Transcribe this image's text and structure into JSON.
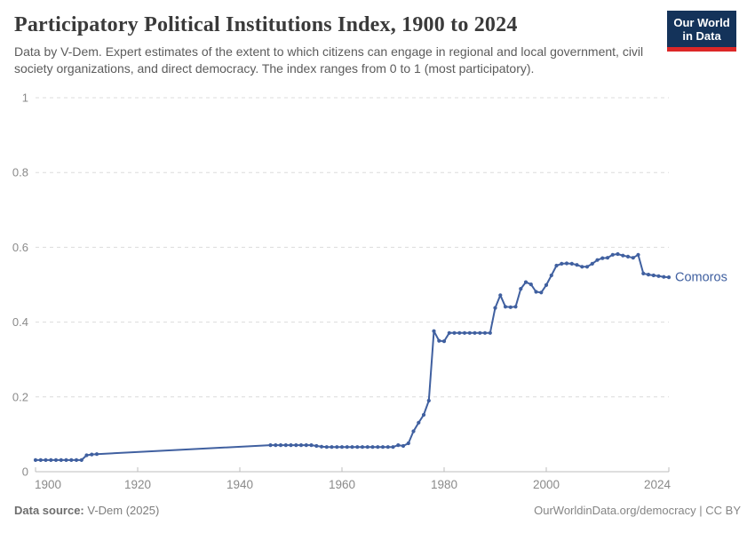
{
  "header": {
    "title": "Participatory Political Institutions Index, 1900 to 2024",
    "subtitle": "Data by V-Dem. Expert estimates of the extent to which citizens can engage in regional and local government, civil society organizations, and direct democracy. The index ranges from 0 to 1 (most participatory).",
    "logo": {
      "line1": "Our World",
      "line2": "in Data",
      "bg_color": "#14335a",
      "bar_color": "#dc2727"
    }
  },
  "footer": {
    "source_label": "Data source:",
    "source_value": " V-Dem (2025)",
    "credit": "OurWorldinData.org/democracy | CC BY"
  },
  "colors": {
    "series_blue": "#4060a0",
    "grid": "#dcdcdc",
    "axis_line": "#bcbcbc",
    "tick_label": "#8a8a8a",
    "title_text": "#3a3a3a",
    "subtitle_text": "#5b5b5b"
  },
  "chart_data": {
    "type": "line",
    "title": "Participatory Political Institutions Index, 1900 to 2024",
    "xlabel": "",
    "ylabel": "",
    "xlim": [
      1900,
      2024
    ],
    "ylim": [
      0,
      1
    ],
    "x_ticks": [
      1900,
      1920,
      1940,
      1960,
      1980,
      2000,
      2024
    ],
    "x_tick_labels": [
      "1900",
      "1920",
      "1940",
      "1960",
      "1980",
      "2000",
      "2024"
    ],
    "y_ticks": [
      0,
      0.2,
      0.4,
      0.6,
      0.8,
      1
    ],
    "y_tick_labels": [
      "0",
      "0.2",
      "0.4",
      "0.6",
      "0.8",
      "1"
    ],
    "grid": "dashed-horizontal",
    "legend_position": "end-of-line-label",
    "series": [
      {
        "name": "Comoros",
        "color": "#4060a0",
        "markers": true,
        "note": "no yearly estimates 1913-1945; straight interpolated segment without markers",
        "points": [
          [
            1900,
            0.031
          ],
          [
            1901,
            0.031
          ],
          [
            1902,
            0.031
          ],
          [
            1903,
            0.031
          ],
          [
            1904,
            0.031
          ],
          [
            1905,
            0.031
          ],
          [
            1906,
            0.031
          ],
          [
            1907,
            0.031
          ],
          [
            1908,
            0.031
          ],
          [
            1909,
            0.031
          ],
          [
            1910,
            0.044
          ],
          [
            1911,
            0.046
          ],
          [
            1912,
            0.047
          ],
          [
            1946,
            0.071
          ],
          [
            1947,
            0.071
          ],
          [
            1948,
            0.071
          ],
          [
            1949,
            0.071
          ],
          [
            1950,
            0.071
          ],
          [
            1951,
            0.071
          ],
          [
            1952,
            0.071
          ],
          [
            1953,
            0.071
          ],
          [
            1954,
            0.071
          ],
          [
            1955,
            0.069
          ],
          [
            1956,
            0.067
          ],
          [
            1957,
            0.066
          ],
          [
            1958,
            0.066
          ],
          [
            1959,
            0.066
          ],
          [
            1960,
            0.066
          ],
          [
            1961,
            0.066
          ],
          [
            1962,
            0.066
          ],
          [
            1963,
            0.066
          ],
          [
            1964,
            0.066
          ],
          [
            1965,
            0.066
          ],
          [
            1966,
            0.066
          ],
          [
            1967,
            0.066
          ],
          [
            1968,
            0.066
          ],
          [
            1969,
            0.066
          ],
          [
            1970,
            0.066
          ],
          [
            1971,
            0.071
          ],
          [
            1972,
            0.069
          ],
          [
            1973,
            0.076
          ],
          [
            1974,
            0.108
          ],
          [
            1975,
            0.131
          ],
          [
            1976,
            0.152
          ],
          [
            1977,
            0.19
          ],
          [
            1978,
            0.376
          ],
          [
            1979,
            0.35
          ],
          [
            1980,
            0.349
          ],
          [
            1981,
            0.371
          ],
          [
            1982,
            0.371
          ],
          [
            1983,
            0.371
          ],
          [
            1984,
            0.371
          ],
          [
            1985,
            0.371
          ],
          [
            1986,
            0.371
          ],
          [
            1987,
            0.371
          ],
          [
            1988,
            0.371
          ],
          [
            1989,
            0.371
          ],
          [
            1990,
            0.438
          ],
          [
            1991,
            0.472
          ],
          [
            1992,
            0.441
          ],
          [
            1993,
            0.44
          ],
          [
            1994,
            0.441
          ],
          [
            1995,
            0.489
          ],
          [
            1996,
            0.507
          ],
          [
            1997,
            0.501
          ],
          [
            1998,
            0.481
          ],
          [
            1999,
            0.479
          ],
          [
            2000,
            0.499
          ],
          [
            2001,
            0.525
          ],
          [
            2002,
            0.551
          ],
          [
            2003,
            0.556
          ],
          [
            2004,
            0.557
          ],
          [
            2005,
            0.556
          ],
          [
            2006,
            0.553
          ],
          [
            2007,
            0.548
          ],
          [
            2008,
            0.548
          ],
          [
            2009,
            0.556
          ],
          [
            2010,
            0.566
          ],
          [
            2011,
            0.571
          ],
          [
            2012,
            0.572
          ],
          [
            2013,
            0.58
          ],
          [
            2014,
            0.582
          ],
          [
            2015,
            0.578
          ],
          [
            2016,
            0.575
          ],
          [
            2017,
            0.572
          ],
          [
            2018,
            0.58
          ],
          [
            2019,
            0.53
          ],
          [
            2020,
            0.527
          ],
          [
            2021,
            0.525
          ],
          [
            2022,
            0.523
          ],
          [
            2023,
            0.521
          ],
          [
            2024,
            0.52
          ]
        ]
      }
    ]
  }
}
